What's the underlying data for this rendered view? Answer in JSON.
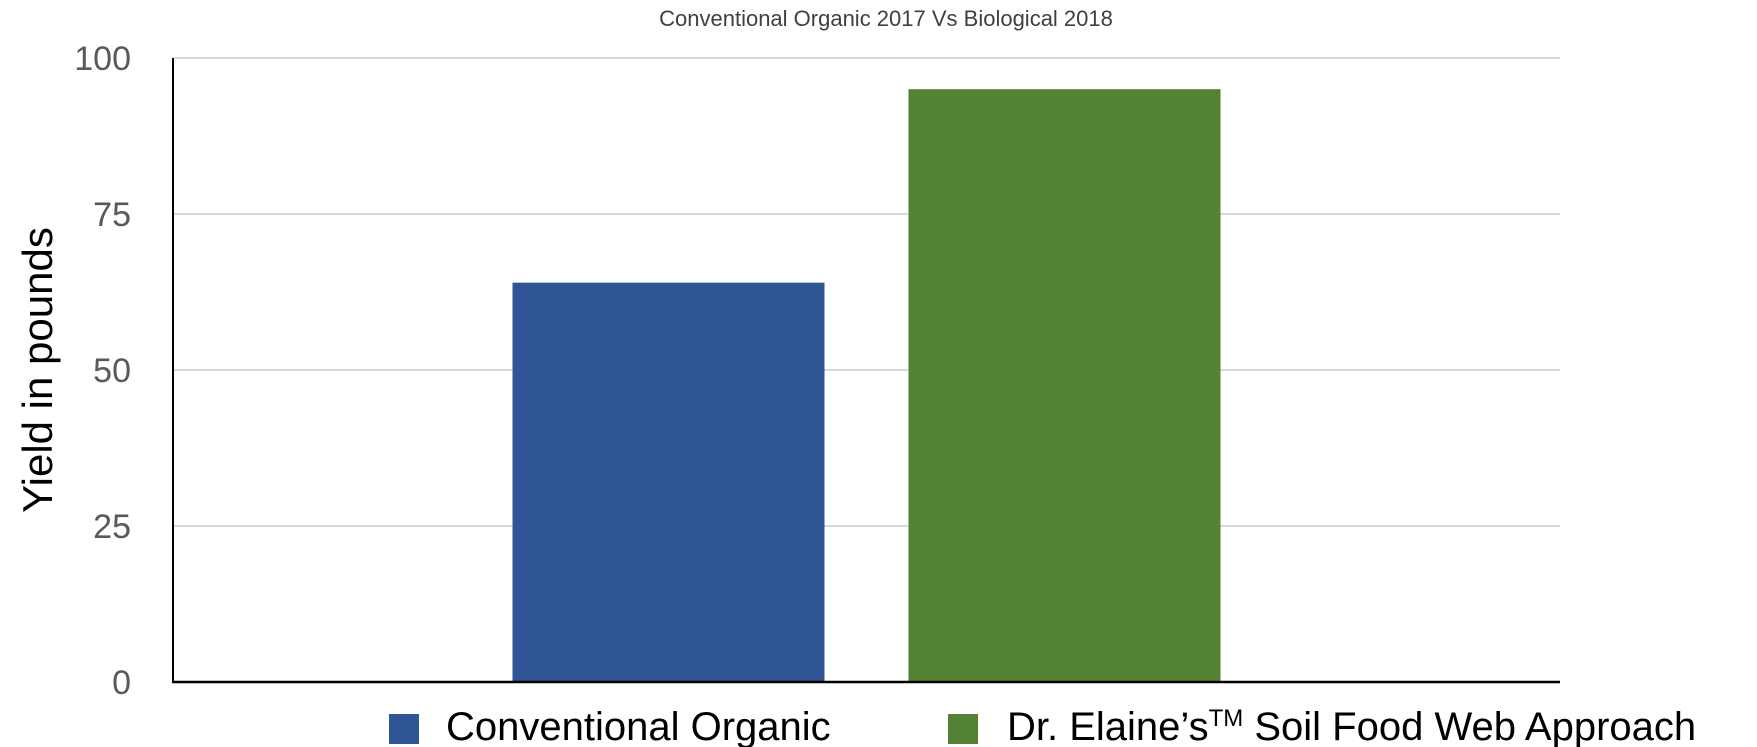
{
  "chart_data": {
    "type": "bar",
    "title": "Conventional Organic 2017 Vs Biological 2018",
    "xlabel": "",
    "ylabel": "Yield in pounds",
    "ylim": [
      0,
      100
    ],
    "yticks": [
      0,
      25,
      50,
      75,
      100
    ],
    "ytick_labels": [
      "0",
      "25",
      "50",
      "75",
      "100"
    ],
    "grid": true,
    "legend_position": "bottom",
    "series": [
      {
        "name": "Conventional Organic",
        "values": [
          64
        ],
        "color": "#2f5597"
      },
      {
        "name": "Dr. Elaine’s™ Soil Food Web Approach",
        "values": [
          95
        ],
        "color": "#548235"
      }
    ],
    "legend": [
      {
        "text": "Conventional Organic"
      },
      {
        "prefix": "Dr. Elaine’s",
        "superscript": "TM",
        "suffix": " Soil Food Web Approach"
      }
    ]
  }
}
